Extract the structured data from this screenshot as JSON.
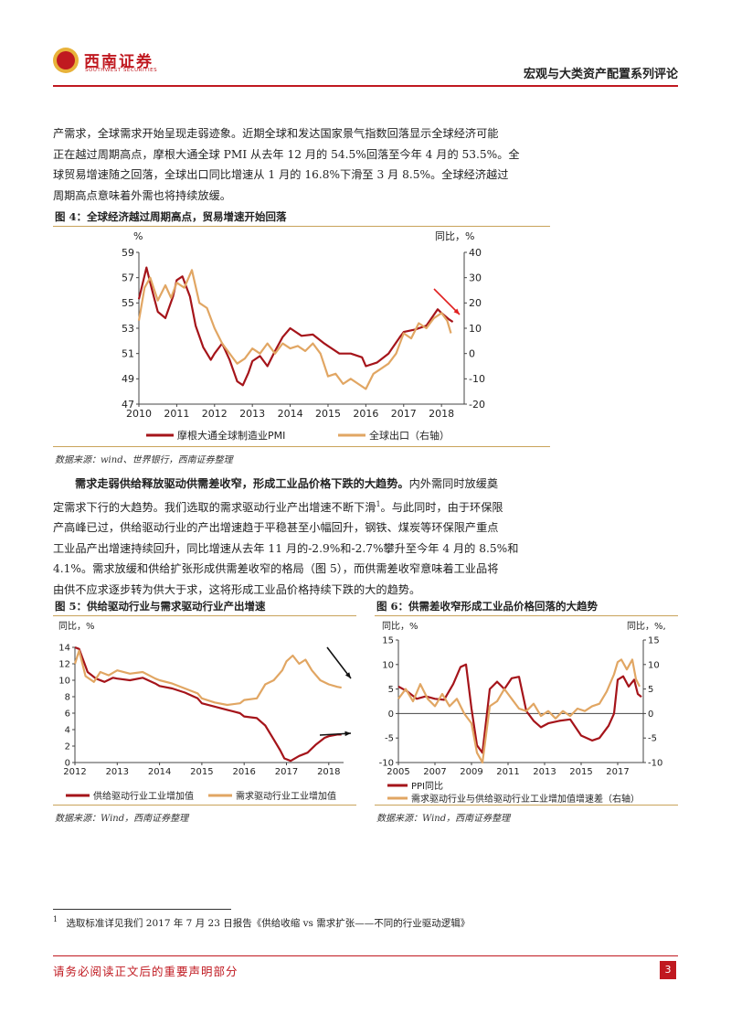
{
  "header": {
    "logo_cn": "西南证券",
    "logo_en": "SOUTHWEST SECURITIES",
    "title": "宏观与大类资产配置系列评论"
  },
  "intro_paragraph": {
    "lines": [
      "产需求，全球需求开始呈现走弱迹象。近期全球和发达国家景气指数回落显示全球经济可能",
      "正在越过周期高点，摩根大通全球 PMI 从去年 12 月的 54.5%回落至今年 4 月的 53.5%。全",
      "球贸易增速随之回落，全球出口同比增速从 1 月的 16.8%下滑至 3 月 8.5%。全球经济越过",
      "周期高点意味着外需也将持续放缓。"
    ]
  },
  "figure4": {
    "title": "图 4：全球经济越过周期高点，贸易增速开始回落",
    "source": "数据来源：wind、世界银行，西南证券整理",
    "chart_data": {
      "type": "line",
      "left_unit": "%",
      "right_unit": "同比，%",
      "x_ticks": [
        "2010",
        "2011",
        "2012",
        "2013",
        "2014",
        "2015",
        "2016",
        "2017",
        "2018"
      ],
      "left_ticks": [
        59,
        57,
        55,
        53,
        51,
        49,
        47
      ],
      "right_ticks": [
        40,
        30,
        20,
        10,
        0,
        -10,
        -20
      ],
      "ylim_left": [
        47,
        59
      ],
      "ylim_right": [
        -20,
        40
      ],
      "xlim": [
        2010,
        2018.6
      ],
      "series": [
        {
          "name": "摩根大通全球制造业PMI",
          "axis": "left",
          "color": "#a5141a",
          "x": [
            2010.0,
            2010.2,
            2010.35,
            2010.5,
            2010.7,
            2010.9,
            2011.0,
            2011.15,
            2011.35,
            2011.5,
            2011.7,
            2011.9,
            2012.0,
            2012.2,
            2012.4,
            2012.6,
            2012.75,
            2012.9,
            2013.0,
            2013.2,
            2013.4,
            2013.6,
            2013.8,
            2014.0,
            2014.3,
            2014.6,
            2014.9,
            2015.0,
            2015.3,
            2015.6,
            2015.9,
            2016.0,
            2016.3,
            2016.6,
            2016.9,
            2017.0,
            2017.3,
            2017.6,
            2017.9,
            2018.0,
            2018.2,
            2018.3
          ],
          "y": [
            55.3,
            57.8,
            56.0,
            54.3,
            53.8,
            55.5,
            56.8,
            57.1,
            55.5,
            53.2,
            51.5,
            50.5,
            51.0,
            51.8,
            50.5,
            48.8,
            48.5,
            49.5,
            50.4,
            50.8,
            50.0,
            51.2,
            52.3,
            53.0,
            52.4,
            52.5,
            51.8,
            51.6,
            51.0,
            51.0,
            50.7,
            50.0,
            50.3,
            51.0,
            52.3,
            52.7,
            52.9,
            53.2,
            54.5,
            54.2,
            53.7,
            53.5
          ]
        },
        {
          "name": "全球出口（右轴）",
          "axis": "right",
          "color": "#e1a663",
          "x": [
            2010.0,
            2010.15,
            2010.3,
            2010.5,
            2010.7,
            2010.85,
            2011.0,
            2011.2,
            2011.4,
            2011.6,
            2011.8,
            2012.0,
            2012.2,
            2012.4,
            2012.6,
            2012.8,
            2013.0,
            2013.2,
            2013.4,
            2013.6,
            2013.8,
            2014.0,
            2014.2,
            2014.4,
            2014.6,
            2014.8,
            2015.0,
            2015.2,
            2015.4,
            2015.6,
            2015.8,
            2016.0,
            2016.2,
            2016.4,
            2016.6,
            2016.8,
            2017.0,
            2017.2,
            2017.4,
            2017.6,
            2017.8,
            2018.0,
            2018.15,
            2018.25
          ],
          "y": [
            13,
            26,
            30,
            21,
            27,
            22,
            28,
            26,
            33,
            20,
            18,
            10,
            4,
            0,
            -4,
            -2,
            2,
            0,
            4,
            0,
            4,
            2,
            3,
            1,
            4,
            0,
            -9,
            -8,
            -12,
            -10,
            -12,
            -14,
            -8,
            -6,
            -4,
            0,
            8,
            6,
            12,
            10,
            14,
            16,
            13,
            8
          ]
        }
      ]
    }
  },
  "main_paragraph": {
    "bold_lead": "需求走弱供给释放驱动供需差收窄，形成工业品价格下跌的大趋势。",
    "lines_first": "内外需同时放缓奠",
    "line2": "定需求下行的大趋势。我们选取的需求驱动行业产出增速不断下滑",
    "footnote_ref": "1",
    "line2b": "。与此同时，由于环保限",
    "line3": "产高峰已过，供给驱动行业的产出增速趋于平稳甚至小幅回升，钢铁、煤炭等环保限产重点",
    "line4": "工业品产出增速持续回升，同比增速从去年 11 月的-2.9%和-2.7%攀升至今年 4 月的 8.5%和",
    "line5": "4.1%。需求放缓和供给扩张形成供需差收窄的格局（图 5），而供需差收窄意味着工业品将",
    "line6": "由供不应求逐步转为供大于求，这将形成工业品价格持续下跌的大的趋势。"
  },
  "figure5": {
    "title": "图 5：供给驱动行业与需求驱动行业产出增速",
    "source": "数据来源：Wind，西南证券整理",
    "chart_data": {
      "type": "line",
      "left_unit": "同比，%",
      "x_ticks": [
        "2012",
        "2013",
        "2014",
        "2015",
        "2016",
        "2017",
        "2018"
      ],
      "left_ticks": [
        14,
        12,
        10,
        8,
        6,
        4,
        2,
        0
      ],
      "ylim_left": [
        0,
        14
      ],
      "xlim": [
        2012,
        2018.35
      ],
      "series": [
        {
          "name": "供给驱动行业工业增加值",
          "color": "#a5141a",
          "x": [
            2012.0,
            2012.1,
            2012.3,
            2012.5,
            2012.7,
            2012.9,
            2013.0,
            2013.3,
            2013.6,
            2013.9,
            2014.0,
            2014.3,
            2014.6,
            2014.9,
            2015.0,
            2015.3,
            2015.6,
            2015.9,
            2016.0,
            2016.3,
            2016.5,
            2016.7,
            2016.85,
            2016.95,
            2017.1,
            2017.3,
            2017.5,
            2017.7,
            2017.9,
            2018.0,
            2018.2,
            2018.3
          ],
          "y": [
            14.0,
            13.8,
            11.0,
            10.2,
            9.8,
            10.3,
            10.2,
            10.0,
            10.3,
            9.6,
            9.3,
            9.0,
            8.5,
            7.8,
            7.2,
            6.8,
            6.4,
            6.0,
            5.6,
            5.4,
            4.5,
            2.8,
            1.5,
            0.5,
            0.2,
            0.8,
            1.2,
            2.2,
            3.0,
            3.2,
            3.4,
            3.4
          ]
        },
        {
          "name": "需求驱动行业工业增加值",
          "color": "#e1a663",
          "x": [
            2012.0,
            2012.1,
            2012.25,
            2012.45,
            2012.6,
            2012.8,
            2013.0,
            2013.3,
            2013.6,
            2013.9,
            2014.0,
            2014.3,
            2014.6,
            2014.9,
            2015.0,
            2015.3,
            2015.6,
            2015.9,
            2016.0,
            2016.3,
            2016.5,
            2016.7,
            2016.9,
            2017.0,
            2017.15,
            2017.3,
            2017.45,
            2017.6,
            2017.8,
            2018.0,
            2018.2,
            2018.3
          ],
          "y": [
            12.0,
            13.6,
            10.5,
            9.8,
            11.0,
            10.6,
            11.2,
            10.8,
            11.0,
            10.2,
            10.0,
            9.6,
            9.0,
            8.4,
            7.8,
            7.3,
            7.0,
            7.2,
            7.6,
            7.8,
            9.5,
            10.0,
            11.2,
            12.3,
            13.0,
            12.0,
            12.5,
            11.2,
            10.0,
            9.5,
            9.2,
            9.1
          ]
        }
      ]
    }
  },
  "figure6": {
    "title": "图 6：供需差收窄形成工业品价格回落的大趋势",
    "source": "数据来源：Wind，西南证券整理",
    "chart_data": {
      "type": "line",
      "left_unit": "同比，%",
      "right_unit": "同比，%,",
      "x_ticks": [
        "2005",
        "2007",
        "2009",
        "2011",
        "2013",
        "2015",
        "2017"
      ],
      "left_ticks": [
        15,
        10,
        5,
        0,
        -5,
        -10
      ],
      "right_ticks": [
        15,
        10,
        5,
        0,
        -5,
        -10
      ],
      "ylim_left": [
        -10,
        15
      ],
      "ylim_right": [
        -10,
        15
      ],
      "xlim": [
        2005,
        2018.4
      ],
      "series": [
        {
          "name": "PPI同比",
          "axis": "left",
          "color": "#a5141a",
          "x": [
            2005.0,
            2005.5,
            2006.0,
            2006.5,
            2007.0,
            2007.5,
            2008.0,
            2008.4,
            2008.7,
            2009.0,
            2009.3,
            2009.6,
            2010.0,
            2010.4,
            2010.8,
            2011.2,
            2011.6,
            2012.0,
            2012.4,
            2012.8,
            2013.2,
            2013.8,
            2014.4,
            2015.0,
            2015.6,
            2016.0,
            2016.5,
            2016.8,
            2017.0,
            2017.3,
            2017.6,
            2017.9,
            2018.1,
            2018.3
          ],
          "y": [
            5.5,
            4.5,
            3.0,
            3.5,
            3.0,
            2.8,
            6.0,
            9.5,
            10.0,
            1.0,
            -6.5,
            -8.0,
            5.0,
            6.5,
            5.0,
            7.2,
            7.5,
            0.5,
            -1.5,
            -2.8,
            -2.0,
            -1.5,
            -1.2,
            -4.5,
            -5.5,
            -5.0,
            -2.5,
            0.0,
            6.9,
            7.6,
            5.5,
            6.9,
            4.0,
            3.4
          ]
        },
        {
          "name": "需求驱动行业与供给驱动行业工业增加值增速差（右轴）",
          "axis": "right",
          "color": "#e1a663",
          "x": [
            2005.0,
            2005.4,
            2005.8,
            2006.2,
            2006.6,
            2007.0,
            2007.4,
            2007.8,
            2008.2,
            2008.6,
            2009.0,
            2009.3,
            2009.6,
            2010.0,
            2010.4,
            2010.8,
            2011.2,
            2011.6,
            2012.0,
            2012.4,
            2012.8,
            2013.2,
            2013.6,
            2014.0,
            2014.4,
            2014.8,
            2015.2,
            2015.6,
            2016.0,
            2016.4,
            2016.8,
            2017.0,
            2017.2,
            2017.5,
            2017.8,
            2018.0,
            2018.2
          ],
          "y": [
            3.0,
            5.0,
            2.5,
            6.0,
            3.0,
            1.5,
            4.0,
            1.5,
            3.0,
            0.0,
            -2.0,
            -8.0,
            -10.0,
            1.5,
            2.5,
            5.0,
            3.0,
            1.0,
            0.5,
            2.0,
            -0.5,
            0.5,
            -1.0,
            0.5,
            -0.5,
            1.0,
            0.5,
            1.5,
            2.0,
            4.5,
            8.0,
            10.5,
            11.0,
            9.0,
            11.0,
            7.0,
            5.5
          ]
        }
      ]
    }
  },
  "footnote": {
    "number": "1",
    "text": "选取标准详见我们 2017 年 7 月 23 日报告《供给收缩 vs 需求扩张——不同的行业驱动逻辑》"
  },
  "footer": {
    "text": "请务必阅读正文后的重要声明部分",
    "page": "3"
  }
}
